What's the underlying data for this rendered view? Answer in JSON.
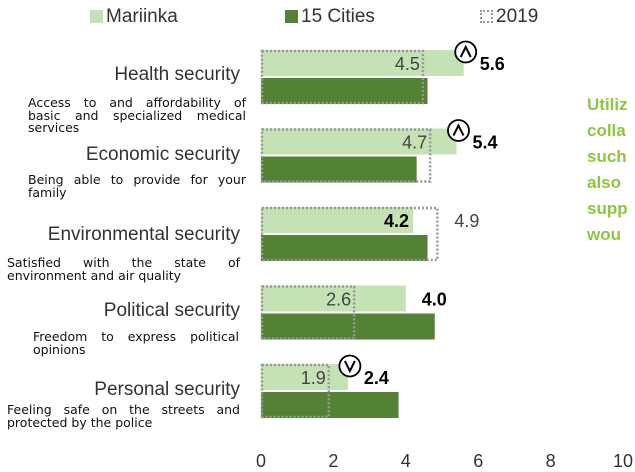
{
  "legend": {
    "items": [
      {
        "label": "Mariinka",
        "color": "#c5e2b4"
      },
      {
        "label": "15 Cities",
        "color": "#548235"
      },
      {
        "label": "2019",
        "color": "#999999"
      }
    ]
  },
  "chart_data": {
    "type": "bar",
    "orientation": "horizontal",
    "categories": [
      "Health security",
      "Economic security",
      "Environmental security",
      "Political security",
      "Personal security"
    ],
    "category_descriptions": [
      "Access to and affordability of basic and specialized medical services",
      "Being able to provide for your family",
      "Satisfied with the state of environment and air quality",
      "Freedom to express political opinions",
      "Feeling safe on the streets and protected by the police"
    ],
    "series": [
      {
        "name": "Mariinka",
        "values": [
          5.6,
          5.4,
          4.2,
          4.0,
          2.4
        ],
        "color": "#c5e2b4"
      },
      {
        "name": "15 Cities",
        "values": [
          4.6,
          4.3,
          4.6,
          4.8,
          3.8
        ],
        "color": "#548235"
      },
      {
        "name": "2019",
        "values": [
          4.5,
          4.7,
          4.9,
          2.6,
          1.9
        ],
        "style": "dotted outline",
        "color": "#999999"
      }
    ],
    "value_labels": {
      "mariinka": [
        "5.6",
        "5.4",
        "4.2",
        "4.0",
        "2.4"
      ],
      "previous": [
        "4.5",
        "4.7",
        "4.9",
        "2.6",
        "1.9"
      ]
    },
    "change_markers": [
      "up",
      "up",
      "",
      "",
      "down"
    ],
    "x_ticks": [
      "0",
      "2",
      "4",
      "6",
      "8",
      "10"
    ],
    "xlim": [
      0,
      10
    ],
    "legend_position": "top",
    "grid": false
  },
  "side_text": [
    "Utiliz",
    "colla",
    "such",
    "also",
    "supp",
    "wou"
  ]
}
